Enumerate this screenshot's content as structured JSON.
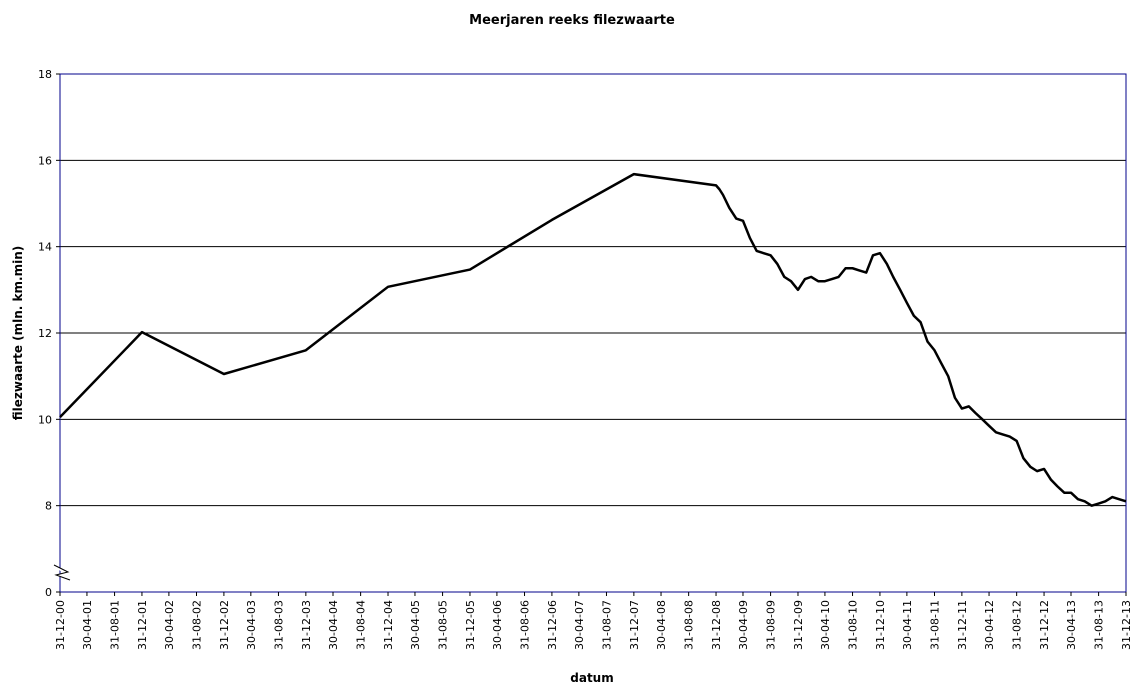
{
  "chart_data": {
    "type": "line",
    "title": "Meerjaren reeks filezwaarte",
    "x_label": "datum",
    "y_label": "filezwaarte (mln. km.min)",
    "ylim": [
      0,
      18
    ],
    "yticks": [
      0,
      8,
      10,
      12,
      14,
      16,
      18
    ],
    "y_axis_break": [
      0,
      6
    ],
    "grid": true,
    "xlim": [
      "31-12-00",
      "31-12-13"
    ],
    "xticks": [
      "31-12-00",
      "30-04-01",
      "31-08-01",
      "31-12-01",
      "30-04-02",
      "31-08-02",
      "31-12-02",
      "30-04-03",
      "31-08-03",
      "31-12-03",
      "30-04-04",
      "31-08-04",
      "31-12-04",
      "30-04-05",
      "31-08-05",
      "31-12-05",
      "30-04-06",
      "31-08-06",
      "31-12-06",
      "30-04-07",
      "31-08-07",
      "31-12-07",
      "30-04-08",
      "31-08-08",
      "31-12-08",
      "30-04-09",
      "31-08-09",
      "31-12-09",
      "30-04-10",
      "31-08-10",
      "31-12-10",
      "30-04-11",
      "31-08-11",
      "31-12-11",
      "30-04-12",
      "31-08-12",
      "31-12-12",
      "30-04-13",
      "31-08-13",
      "31-12-13"
    ],
    "x": [
      "31-12-00",
      "31-12-01",
      "31-12-02",
      "31-12-03",
      "31-12-04",
      "31-12-05",
      "31-12-06",
      "31-12-07",
      "31-12-08",
      "15-01-09",
      "31-01-09",
      "28-02-09",
      "31-03-09",
      "30-04-09",
      "31-05-09",
      "30-06-09",
      "31-07-09",
      "31-08-09",
      "30-09-09",
      "31-10-09",
      "30-11-09",
      "31-12-09",
      "31-01-10",
      "28-02-10",
      "31-03-10",
      "30-04-10",
      "31-05-10",
      "30-06-10",
      "31-07-10",
      "31-08-10",
      "30-09-10",
      "31-10-10",
      "30-11-10",
      "31-12-10",
      "31-01-11",
      "28-02-11",
      "31-03-11",
      "30-04-11",
      "31-05-11",
      "30-06-11",
      "31-07-11",
      "31-08-11",
      "30-09-11",
      "31-10-11",
      "30-11-11",
      "31-12-11",
      "31-01-12",
      "29-02-12",
      "31-03-12",
      "30-04-12",
      "31-05-12",
      "30-06-12",
      "31-07-12",
      "31-08-12",
      "30-09-12",
      "31-10-12",
      "30-11-12",
      "31-12-12",
      "31-01-13",
      "28-02-13",
      "31-03-13",
      "30-04-13",
      "31-05-13",
      "30-06-13",
      "31-07-13",
      "31-08-13",
      "30-09-13",
      "31-10-13",
      "30-11-13",
      "31-12-13"
    ],
    "series": [
      {
        "color": "#000000",
        "values": [
          10.05,
          12.02,
          11.05,
          11.6,
          13.07,
          13.47,
          14.62,
          15.68,
          15.42,
          15.33,
          15.2,
          14.9,
          14.65,
          14.6,
          14.2,
          13.9,
          13.85,
          13.8,
          13.6,
          13.3,
          13.2,
          13.0,
          13.25,
          13.3,
          13.2,
          13.2,
          13.25,
          13.3,
          13.5,
          13.5,
          13.45,
          13.4,
          13.8,
          13.85,
          13.6,
          13.3,
          13.0,
          12.7,
          12.4,
          12.25,
          11.8,
          11.6,
          11.3,
          11.0,
          10.5,
          10.25,
          10.3,
          10.15,
          10.0,
          9.85,
          9.7,
          9.65,
          9.6,
          9.5,
          9.1,
          8.9,
          8.8,
          8.85,
          8.6,
          8.45,
          8.3,
          8.3,
          8.15,
          8.1,
          8.0,
          8.05,
          8.1,
          8.2,
          8.15,
          8.1
        ]
      }
    ]
  }
}
